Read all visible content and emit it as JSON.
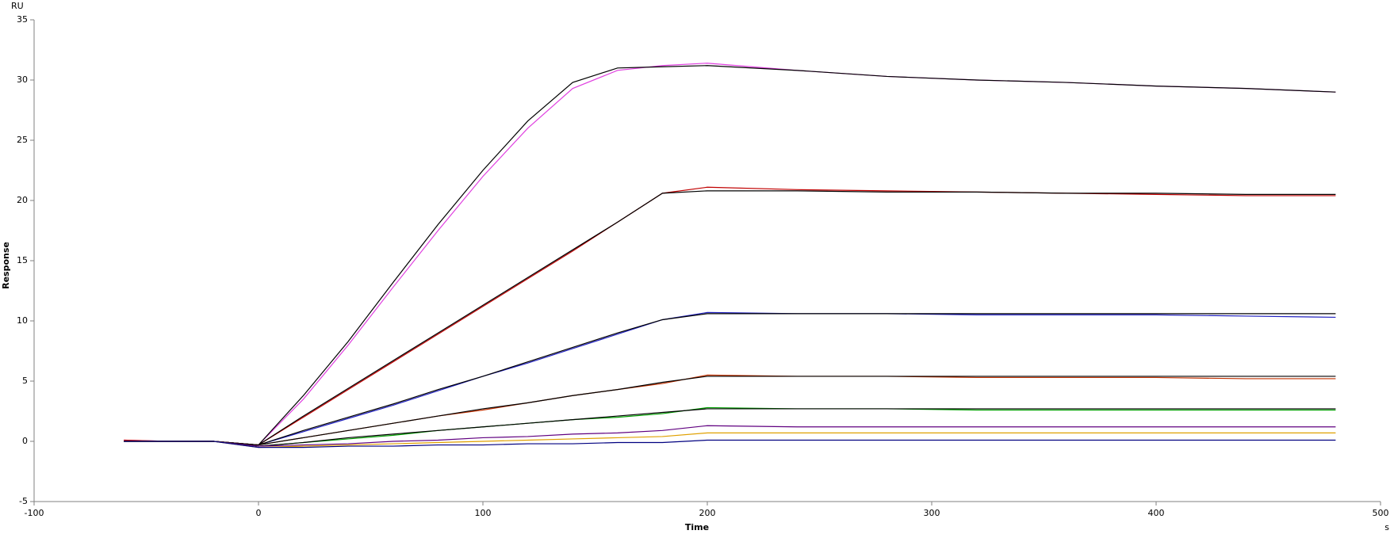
{
  "chart_data": {
    "type": "line",
    "x_label": "Time",
    "y_label": "Response",
    "x_unit": "s",
    "y_unit": "RU",
    "xlim": [
      -100,
      500
    ],
    "ylim": [
      -5,
      35
    ],
    "xticks": [
      -100,
      0,
      100,
      200,
      300,
      400,
      500
    ],
    "yticks": [
      -5,
      0,
      5,
      10,
      15,
      20,
      25,
      30,
      35
    ],
    "x": [
      -60,
      -40,
      -20,
      0,
      20,
      40,
      60,
      80,
      100,
      120,
      140,
      160,
      180,
      200,
      240,
      280,
      320,
      360,
      400,
      440,
      480
    ],
    "series": [
      {
        "color": "#e040e0",
        "values": [
          0.1,
          0,
          0,
          -0.3,
          3.5,
          8.0,
          12.8,
          17.5,
          22.0,
          26.0,
          29.3,
          30.8,
          31.2,
          31.4,
          30.8,
          30.3,
          30.0,
          29.8,
          29.5,
          29.3,
          29.0
        ]
      },
      {
        "color": "#000000",
        "values": [
          0,
          0,
          0,
          -0.3,
          3.8,
          8.3,
          13.2,
          18.0,
          22.5,
          26.6,
          29.8,
          31.0,
          31.1,
          31.2,
          30.8,
          30.3,
          30.0,
          29.8,
          29.5,
          29.3,
          29.0
        ]
      },
      {
        "color": "#c00000",
        "values": [
          0.1,
          0,
          0,
          -0.3,
          2.0,
          4.3,
          6.6,
          8.9,
          11.2,
          13.5,
          15.8,
          18.2,
          20.6,
          21.1,
          20.9,
          20.8,
          20.7,
          20.6,
          20.5,
          20.4,
          20.4
        ]
      },
      {
        "color": "#000000",
        "values": [
          0,
          0,
          0,
          -0.3,
          2.1,
          4.4,
          6.7,
          9.0,
          11.3,
          13.6,
          15.9,
          18.2,
          20.6,
          20.8,
          20.8,
          20.7,
          20.7,
          20.6,
          20.6,
          20.5,
          20.5
        ]
      },
      {
        "color": "#2020c0",
        "values": [
          0,
          0,
          0,
          -0.3,
          0.8,
          1.9,
          3.0,
          4.2,
          5.4,
          6.5,
          7.7,
          8.9,
          10.1,
          10.7,
          10.6,
          10.6,
          10.5,
          10.5,
          10.5,
          10.4,
          10.3
        ]
      },
      {
        "color": "#000000",
        "values": [
          0,
          0,
          0,
          -0.3,
          0.9,
          2.0,
          3.1,
          4.3,
          5.4,
          6.6,
          7.8,
          9.0,
          10.1,
          10.6,
          10.6,
          10.6,
          10.6,
          10.6,
          10.6,
          10.6,
          10.6
        ]
      },
      {
        "color": "#c03000",
        "values": [
          0,
          0,
          0,
          -0.3,
          0.3,
          0.9,
          1.5,
          2.1,
          2.6,
          3.2,
          3.8,
          4.3,
          4.8,
          5.5,
          5.4,
          5.4,
          5.3,
          5.3,
          5.3,
          5.2,
          5.2
        ]
      },
      {
        "color": "#000000",
        "values": [
          0,
          0,
          0,
          -0.3,
          0.3,
          0.9,
          1.5,
          2.1,
          2.7,
          3.2,
          3.8,
          4.3,
          4.9,
          5.4,
          5.4,
          5.4,
          5.4,
          5.4,
          5.4,
          5.4,
          5.4
        ]
      },
      {
        "color": "#00a000",
        "values": [
          0,
          0,
          0,
          -0.4,
          -0.1,
          0.2,
          0.5,
          0.9,
          1.2,
          1.5,
          1.8,
          2.0,
          2.3,
          2.8,
          2.7,
          2.7,
          2.6,
          2.6,
          2.6,
          2.6,
          2.6
        ]
      },
      {
        "color": "#000000",
        "values": [
          0,
          0,
          0,
          -0.4,
          -0.1,
          0.3,
          0.6,
          0.9,
          1.2,
          1.5,
          1.8,
          2.1,
          2.4,
          2.7,
          2.7,
          2.7,
          2.7,
          2.7,
          2.7,
          2.7,
          2.7
        ]
      },
      {
        "color": "#600080",
        "values": [
          0,
          0,
          0,
          -0.4,
          -0.3,
          -0.2,
          0,
          0.1,
          0.3,
          0.4,
          0.6,
          0.7,
          0.9,
          1.3,
          1.2,
          1.2,
          1.2,
          1.2,
          1.2,
          1.2,
          1.2
        ]
      },
      {
        "color": "#e0a000",
        "values": [
          0,
          0,
          0,
          -0.5,
          -0.4,
          -0.3,
          -0.2,
          -0.1,
          0,
          0.1,
          0.2,
          0.3,
          0.4,
          0.7,
          0.7,
          0.7,
          0.7,
          0.7,
          0.7,
          0.7,
          0.7
        ]
      },
      {
        "color": "#000080",
        "values": [
          0,
          0,
          0,
          -0.5,
          -0.5,
          -0.4,
          -0.4,
          -0.3,
          -0.3,
          -0.2,
          -0.2,
          -0.1,
          -0.1,
          0.1,
          0.1,
          0.1,
          0.1,
          0.1,
          0.1,
          0.1,
          0.1
        ]
      }
    ]
  }
}
